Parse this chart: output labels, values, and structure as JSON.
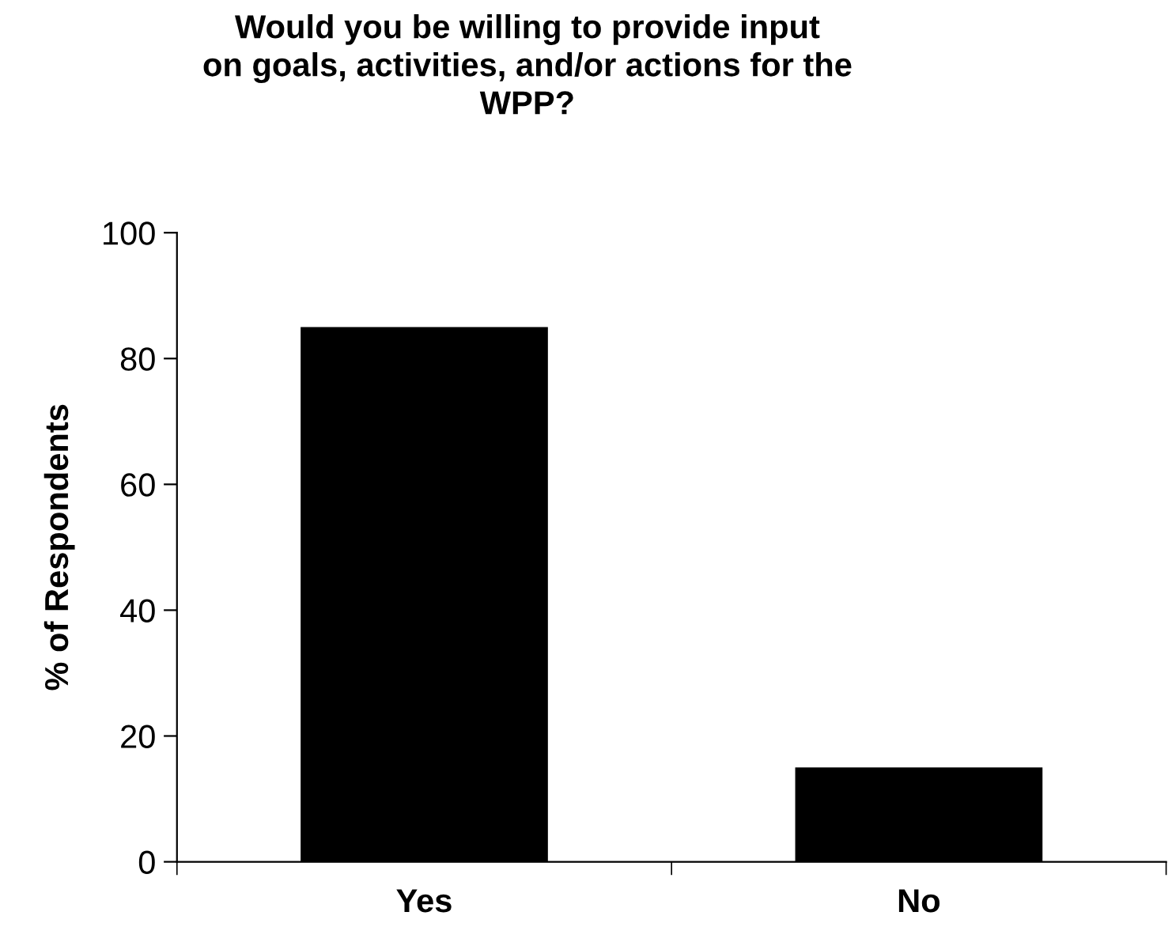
{
  "chart_data": {
    "type": "bar",
    "title": "Would you be willing to provide input\non goals, activities, and/or actions for the\nWPP?",
    "ylabel": "% of Respondents",
    "categories": [
      "Yes",
      "No"
    ],
    "values": [
      85,
      15
    ],
    "color": "#000000",
    "ylim": [
      0,
      100
    ],
    "yticks": [
      0,
      20,
      40,
      60,
      80,
      100
    ],
    "grid": false,
    "legend": false
  }
}
